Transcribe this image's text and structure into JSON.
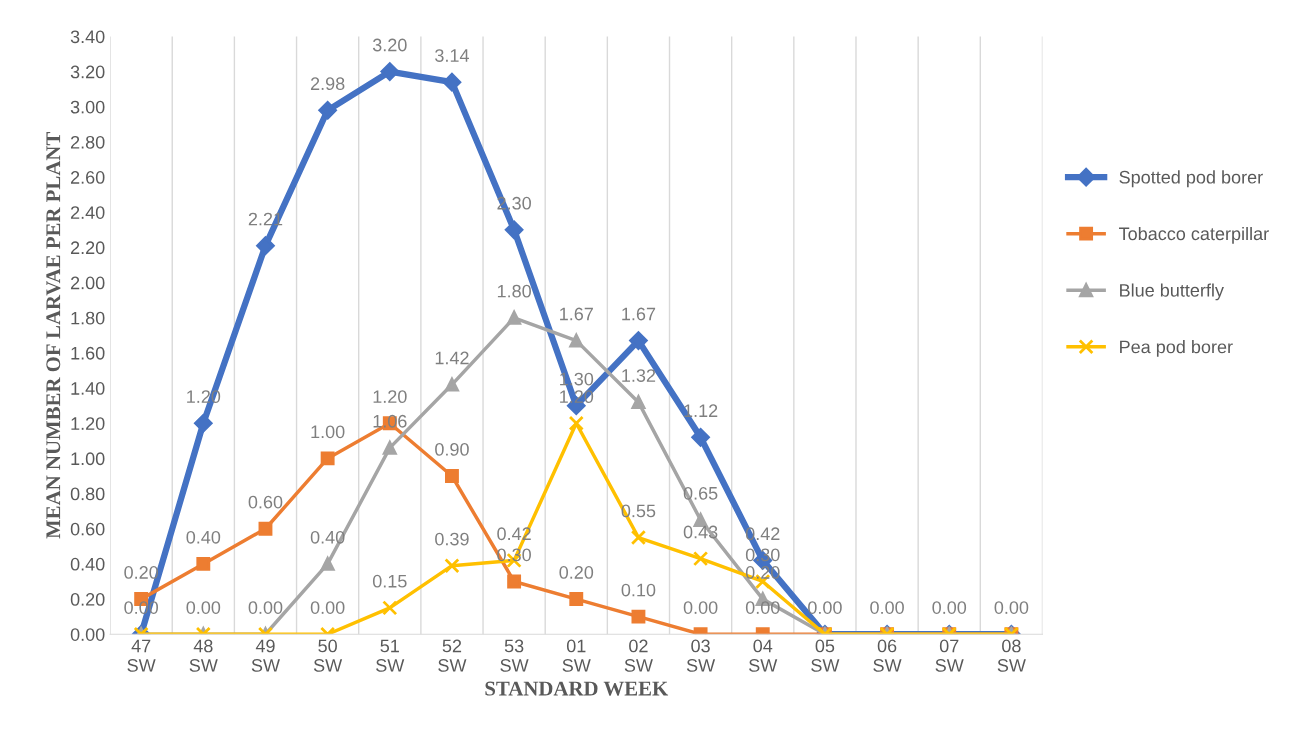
{
  "chart_data": {
    "type": "line",
    "xlabel": "STANDARD WEEK",
    "ylabel": "MEAN NUMBER OF LARVAE PER PLANT",
    "categories": [
      "47\nSW",
      "48\nSW",
      "49\nSW",
      "50\nSW",
      "51\nSW",
      "52\nSW",
      "53\nSW",
      "01\nSW",
      "02\nSW",
      "03\nSW",
      "04\nSW",
      "05\nSW",
      "06\nSW",
      "07\nSW",
      "08\nSW"
    ],
    "series": [
      {
        "name": "Spotted pod borer",
        "color": "#4472c4",
        "marker": "diamond",
        "values": [
          0.0,
          1.2,
          2.21,
          2.98,
          3.2,
          3.14,
          2.3,
          1.3,
          1.67,
          1.12,
          0.42,
          0.0,
          0.0,
          0.0,
          0.0
        ],
        "value_labels": [
          "0.00",
          "1.20",
          "2.21",
          "2.98",
          "3.20",
          "3.14",
          "2.30",
          "1.30",
          "1.67",
          "1.12",
          "0.42",
          "0.00",
          "0.00",
          "0.00",
          "0.00"
        ]
      },
      {
        "name": "Tobacco caterpillar",
        "color": "#ed7d31",
        "marker": "square",
        "values": [
          0.2,
          0.4,
          0.6,
          1.0,
          1.2,
          0.9,
          0.3,
          0.2,
          0.1,
          0.0,
          0.0,
          0.0,
          0.0,
          0.0,
          0.0
        ],
        "value_labels": [
          "0.20",
          "0.40",
          "0.60",
          "1.00",
          "1.20",
          "0.90",
          "0.30",
          "0.20",
          "0.10",
          "0.00",
          "0.00",
          null,
          null,
          null,
          null
        ]
      },
      {
        "name": "Blue butterfly",
        "color": "#a5a5a5",
        "marker": "triangle",
        "values": [
          0.0,
          0.0,
          0.0,
          0.4,
          1.06,
          1.42,
          1.8,
          1.67,
          1.32,
          0.65,
          0.2,
          0.0,
          0.0,
          0.0,
          0.0
        ],
        "value_labels": [
          null,
          "0.00",
          "0.00",
          "0.40",
          "1.06",
          "1.42",
          "1.80",
          "1.67",
          "1.32",
          "0.65",
          "0.20",
          null,
          null,
          null,
          null
        ]
      },
      {
        "name": "Pea pod borer",
        "color": "#ffc000",
        "marker": "cross",
        "values": [
          0.0,
          0.0,
          0.0,
          0.0,
          0.15,
          0.39,
          0.42,
          1.2,
          0.55,
          0.43,
          0.3,
          0.0,
          0.0,
          0.0,
          0.0
        ],
        "value_labels": [
          null,
          null,
          null,
          "0.00",
          "0.15",
          "0.39",
          "0.42",
          "1.20",
          "0.55",
          "0.43",
          "0.30",
          null,
          null,
          null,
          null
        ]
      }
    ],
    "ylim": [
      0,
      3.4
    ],
    "yticks": [
      {
        "value": 0,
        "label": "0.00"
      },
      {
        "value": 0.2,
        "label": "0.20"
      },
      {
        "value": 0.4,
        "label": "0.40"
      },
      {
        "value": 0.6,
        "label": "0.60"
      },
      {
        "value": 0.8,
        "label": "0.80"
      },
      {
        "value": 1.0,
        "label": "1.00"
      },
      {
        "value": 1.2,
        "label": "1.20"
      },
      {
        "value": 1.4,
        "label": "1.40"
      },
      {
        "value": 1.6,
        "label": "1.60"
      },
      {
        "value": 1.8,
        "label": "1.80"
      },
      {
        "value": 2.0,
        "label": "2.00"
      },
      {
        "value": 2.2,
        "label": "2.20"
      },
      {
        "value": 2.4,
        "label": "2.40"
      },
      {
        "value": 2.6,
        "label": "2.60"
      },
      {
        "value": 2.8,
        "label": "2.80"
      },
      {
        "value": 3.0,
        "label": "3.00"
      },
      {
        "value": 3.2,
        "label": "3.20"
      },
      {
        "value": 3.4,
        "label": "3.40"
      }
    ],
    "grid": "x",
    "legend": "right",
    "line_style": "solid"
  }
}
